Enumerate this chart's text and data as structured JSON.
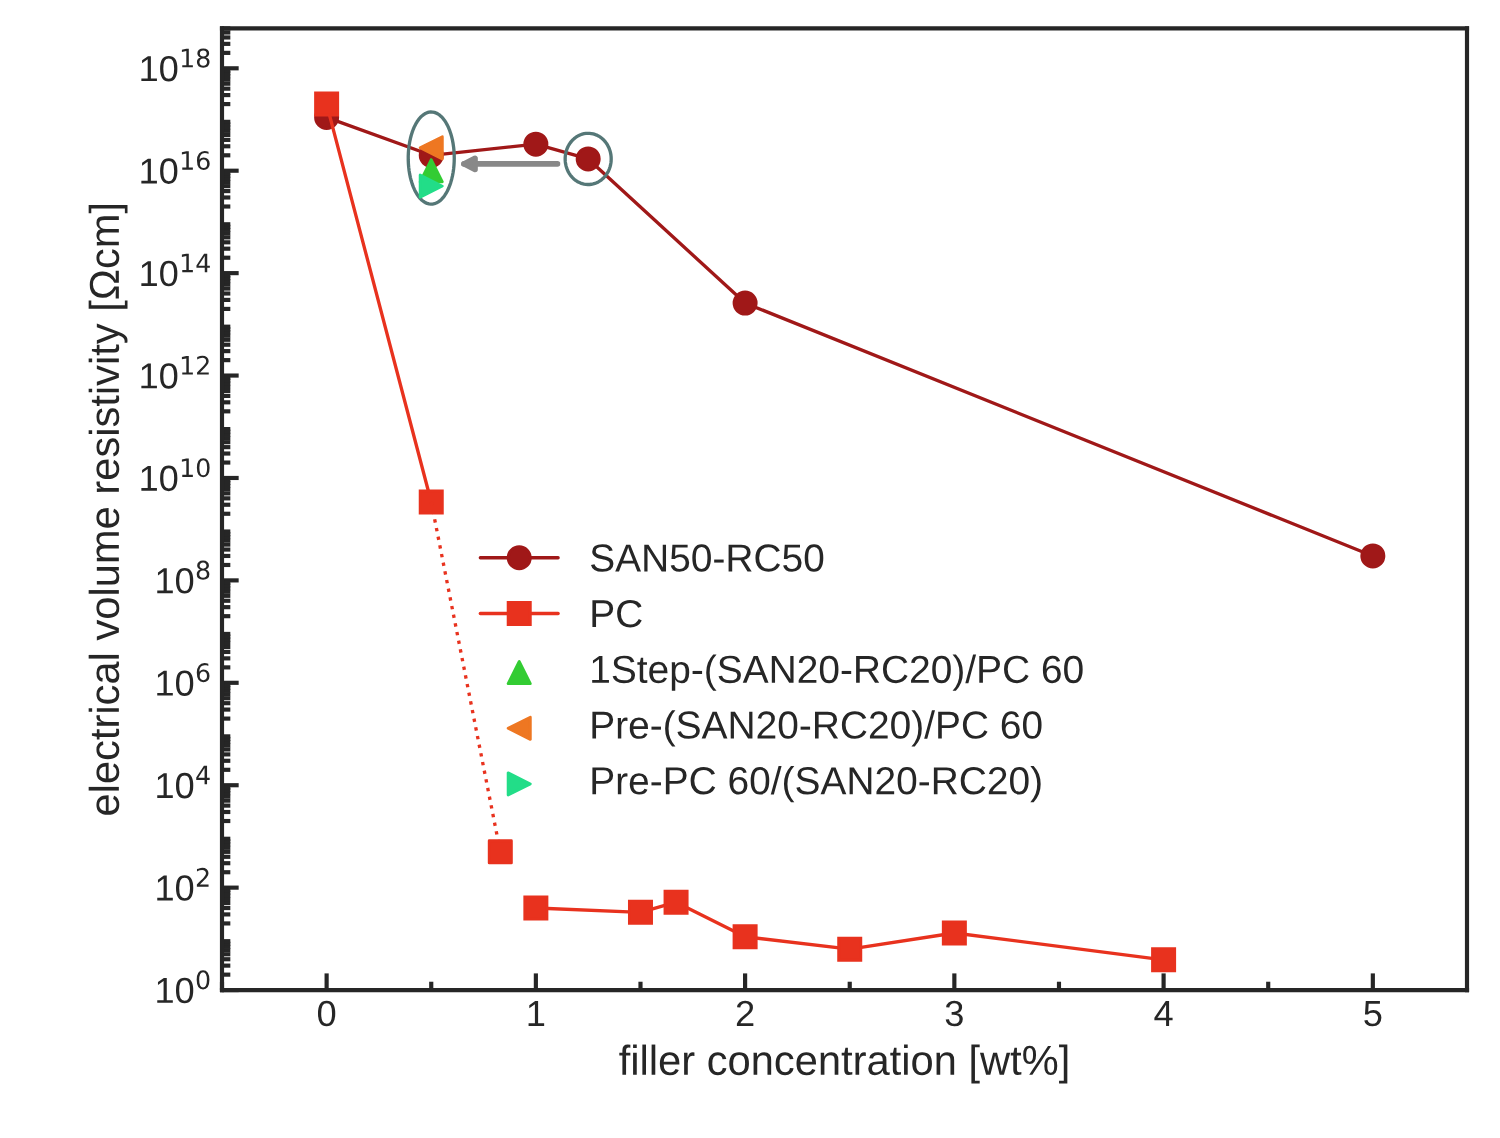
{
  "chart_data": {
    "type": "line",
    "xlabel": "filler concentration [wt%]",
    "ylabel": "electrical volume resistivity [Ωcm]",
    "log": "y",
    "xlim": [
      -0.5,
      5.45
    ],
    "xticks": [
      0,
      1,
      2,
      3,
      4,
      5
    ],
    "ylim": [
      1,
      6e+18
    ],
    "yticks": [
      {
        "value": 1,
        "label": "10$^{0}$"
      },
      {
        "value": 100,
        "label": "10$^{2}$"
      },
      {
        "value": 10000,
        "label": "10$^{4}$"
      },
      {
        "value": 1000000,
        "label": "10$^{6}$"
      },
      {
        "value": 100000000,
        "label": "10$^{8}$"
      },
      {
        "value": 10000000000,
        "label": "10$^{10}$"
      },
      {
        "value": 1000000000000,
        "label": "10$^{12}$"
      },
      {
        "value": 100000000000000,
        "label": "10$^{14}$"
      },
      {
        "value": 10000000000000000,
        "label": "10$^{16}$"
      },
      {
        "value": 1000000000000000000,
        "label": "10$^{18}$"
      }
    ],
    "grid": false,
    "legend": "center",
    "series": [
      {
        "name": "SAN50-RC50",
        "marker": "circle",
        "line_style": "solid",
        "color": "#a01818",
        "x": [
          0,
          0.5,
          1,
          1.25,
          2,
          5
        ],
        "values": [
          1.1e+17,
          2e+16,
          3.3e+16,
          1.7e+16,
          26000000000000.0,
          300000000.0
        ]
      },
      {
        "name": "PC",
        "marker": "square",
        "line_style": "solid",
        "color": "#e8321e",
        "x": [
          0,
          0.5,
          0.83,
          1,
          1.5,
          1.67,
          2,
          2.5,
          3,
          4
        ],
        "values": [
          2e+17,
          3400000000.0,
          null,
          40,
          33,
          52,
          11,
          6.3,
          13,
          3.9
        ]
      },
      {
        "marker": "none",
        "line_style": "dotted",
        "color": "#e8321e",
        "x": [
          0.5,
          0.83
        ],
        "values": [
          3400000000.0,
          500
        ]
      },
      {
        "type": "scatter",
        "marker": "square",
        "color": "#e8321e",
        "x": [
          0.83
        ],
        "values": [
          500
        ]
      },
      {
        "name": "1Step-(SAN20-RC20)/PC 60",
        "type": "scatter",
        "marker": "triangle",
        "color": "#33cc33",
        "x": [
          0.5
        ],
        "values": [
          1e+16
        ]
      },
      {
        "name": "Pre-(SAN20-RC20)/PC 60",
        "type": "scatter",
        "marker": "triangle_left",
        "color": "#ee7722",
        "x": [
          0.5
        ],
        "values": [
          2.8e+16
        ]
      },
      {
        "name": "Pre-PC 60/(SAN20-RC20)",
        "type": "scatter",
        "marker": "triangle_right",
        "color": "#22dd88",
        "x": [
          0.5
        ],
        "values": [
          5000000000000000.0
        ]
      }
    ]
  }
}
